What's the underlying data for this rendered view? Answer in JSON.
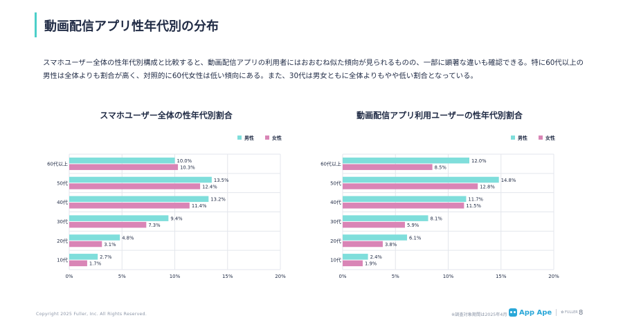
{
  "page": {
    "title": "動画配信アプリ性年代別の分布",
    "intro": "スマホユーザー全体の性年代別構成と比較すると、動画配信アプリの利用者にはおおむね似た傾向が見られるものの、一部に顕著な違いも確認できる。特に60代以上の男性は全体よりも割合が高く、対照的に60代女性は低い傾向にある。また、30代は男女ともに全体よりもやや低い割合となっている。",
    "copyright": "Copyright 2025 Fuller, Inc. All Rights Reserved.",
    "note": "※調査対象期間は2025年4月",
    "logo_text": "App Ape",
    "logo_sub": "✿ FULLER",
    "page_number": "8"
  },
  "colors": {
    "male": "#7fdedb",
    "female": "#d985b6",
    "grid": "#e3e6ec",
    "axis_text": "#1f2a44",
    "accent": "#4ccfc9"
  },
  "chart_data": [
    {
      "type": "bar",
      "orientation": "horizontal",
      "title": "スマホユーザー全体の性年代別割合",
      "categories": [
        "60代以上",
        "50代",
        "40代",
        "30代",
        "20代",
        "10代"
      ],
      "series": [
        {
          "name": "男性",
          "values": [
            10.0,
            13.5,
            13.2,
            9.4,
            4.8,
            2.7
          ]
        },
        {
          "name": "女性",
          "values": [
            10.3,
            12.4,
            11.4,
            7.3,
            3.1,
            1.7
          ]
        }
      ],
      "data_labels": [
        [
          "10.0%",
          "13.5%",
          "13.2%",
          "9.4%",
          "4.8%",
          "2.7%"
        ],
        [
          "10.3%",
          "12.4%",
          "11.4%",
          "7.3%",
          "3.1%",
          "1.7%"
        ]
      ],
      "x_ticks": [
        "0%",
        "5%",
        "10%",
        "15%",
        "20%"
      ],
      "xlim": [
        0,
        20
      ],
      "grid": true,
      "legend": "top-right"
    },
    {
      "type": "bar",
      "orientation": "horizontal",
      "title": "動画配信アプリ利用ユーザーの性年代別割合",
      "categories": [
        "60代以上",
        "50代",
        "40代",
        "30代",
        "20代",
        "10代"
      ],
      "series": [
        {
          "name": "男性",
          "values": [
            12.0,
            14.8,
            11.7,
            8.1,
            6.1,
            2.4
          ]
        },
        {
          "name": "女性",
          "values": [
            8.5,
            12.8,
            11.5,
            5.9,
            3.8,
            1.9
          ]
        }
      ],
      "data_labels": [
        [
          "12.0%",
          "14.8%",
          "11.7%",
          "8.1%",
          "6.1%",
          "2.4%"
        ],
        [
          "8.5%",
          "12.8%",
          "11.5%",
          "5.9%",
          "3.8%",
          "1.9%"
        ]
      ],
      "x_ticks": [
        "0%",
        "5%",
        "10%",
        "15%",
        "20%"
      ],
      "xlim": [
        0,
        20
      ],
      "grid": true,
      "legend": "top-right"
    }
  ]
}
